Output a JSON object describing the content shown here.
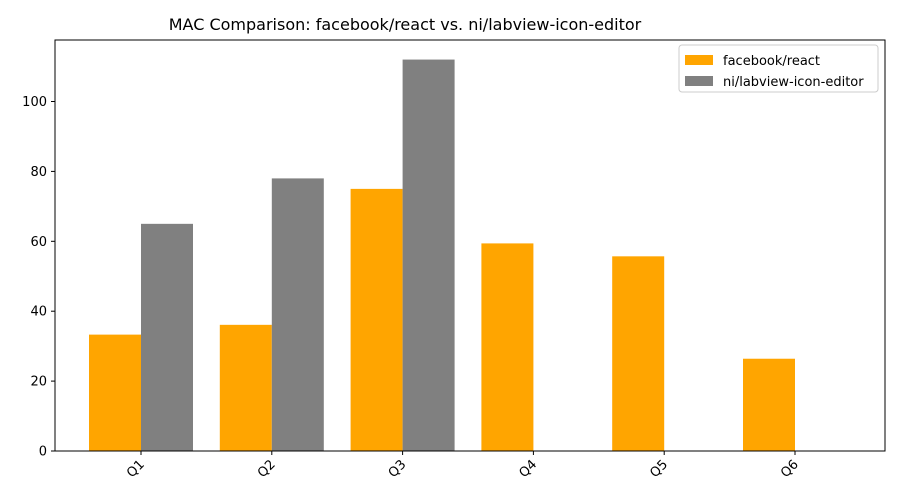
{
  "chart_data": {
    "type": "bar",
    "title": "MAC Comparison: facebook/react vs. ni/labview-icon-editor",
    "xlabel": "",
    "ylabel": "",
    "categories": [
      "Q1",
      "Q2",
      "Q3",
      "Q4",
      "Q5",
      "Q6"
    ],
    "series": [
      {
        "name": "facebook/react",
        "color": "#FFA500",
        "values": [
          33.3,
          36.1,
          75.0,
          59.4,
          55.7,
          26.4
        ]
      },
      {
        "name": "ni/labview-icon-editor",
        "color": "#808080",
        "values": [
          65.0,
          78.0,
          112.0,
          null,
          null,
          null
        ]
      }
    ],
    "ylim": [
      0,
      117.6
    ],
    "yticks": [
      0,
      20,
      40,
      60,
      80,
      100
    ],
    "grid": false,
    "legend_position": "top-right",
    "xtick_rotation": 45
  }
}
